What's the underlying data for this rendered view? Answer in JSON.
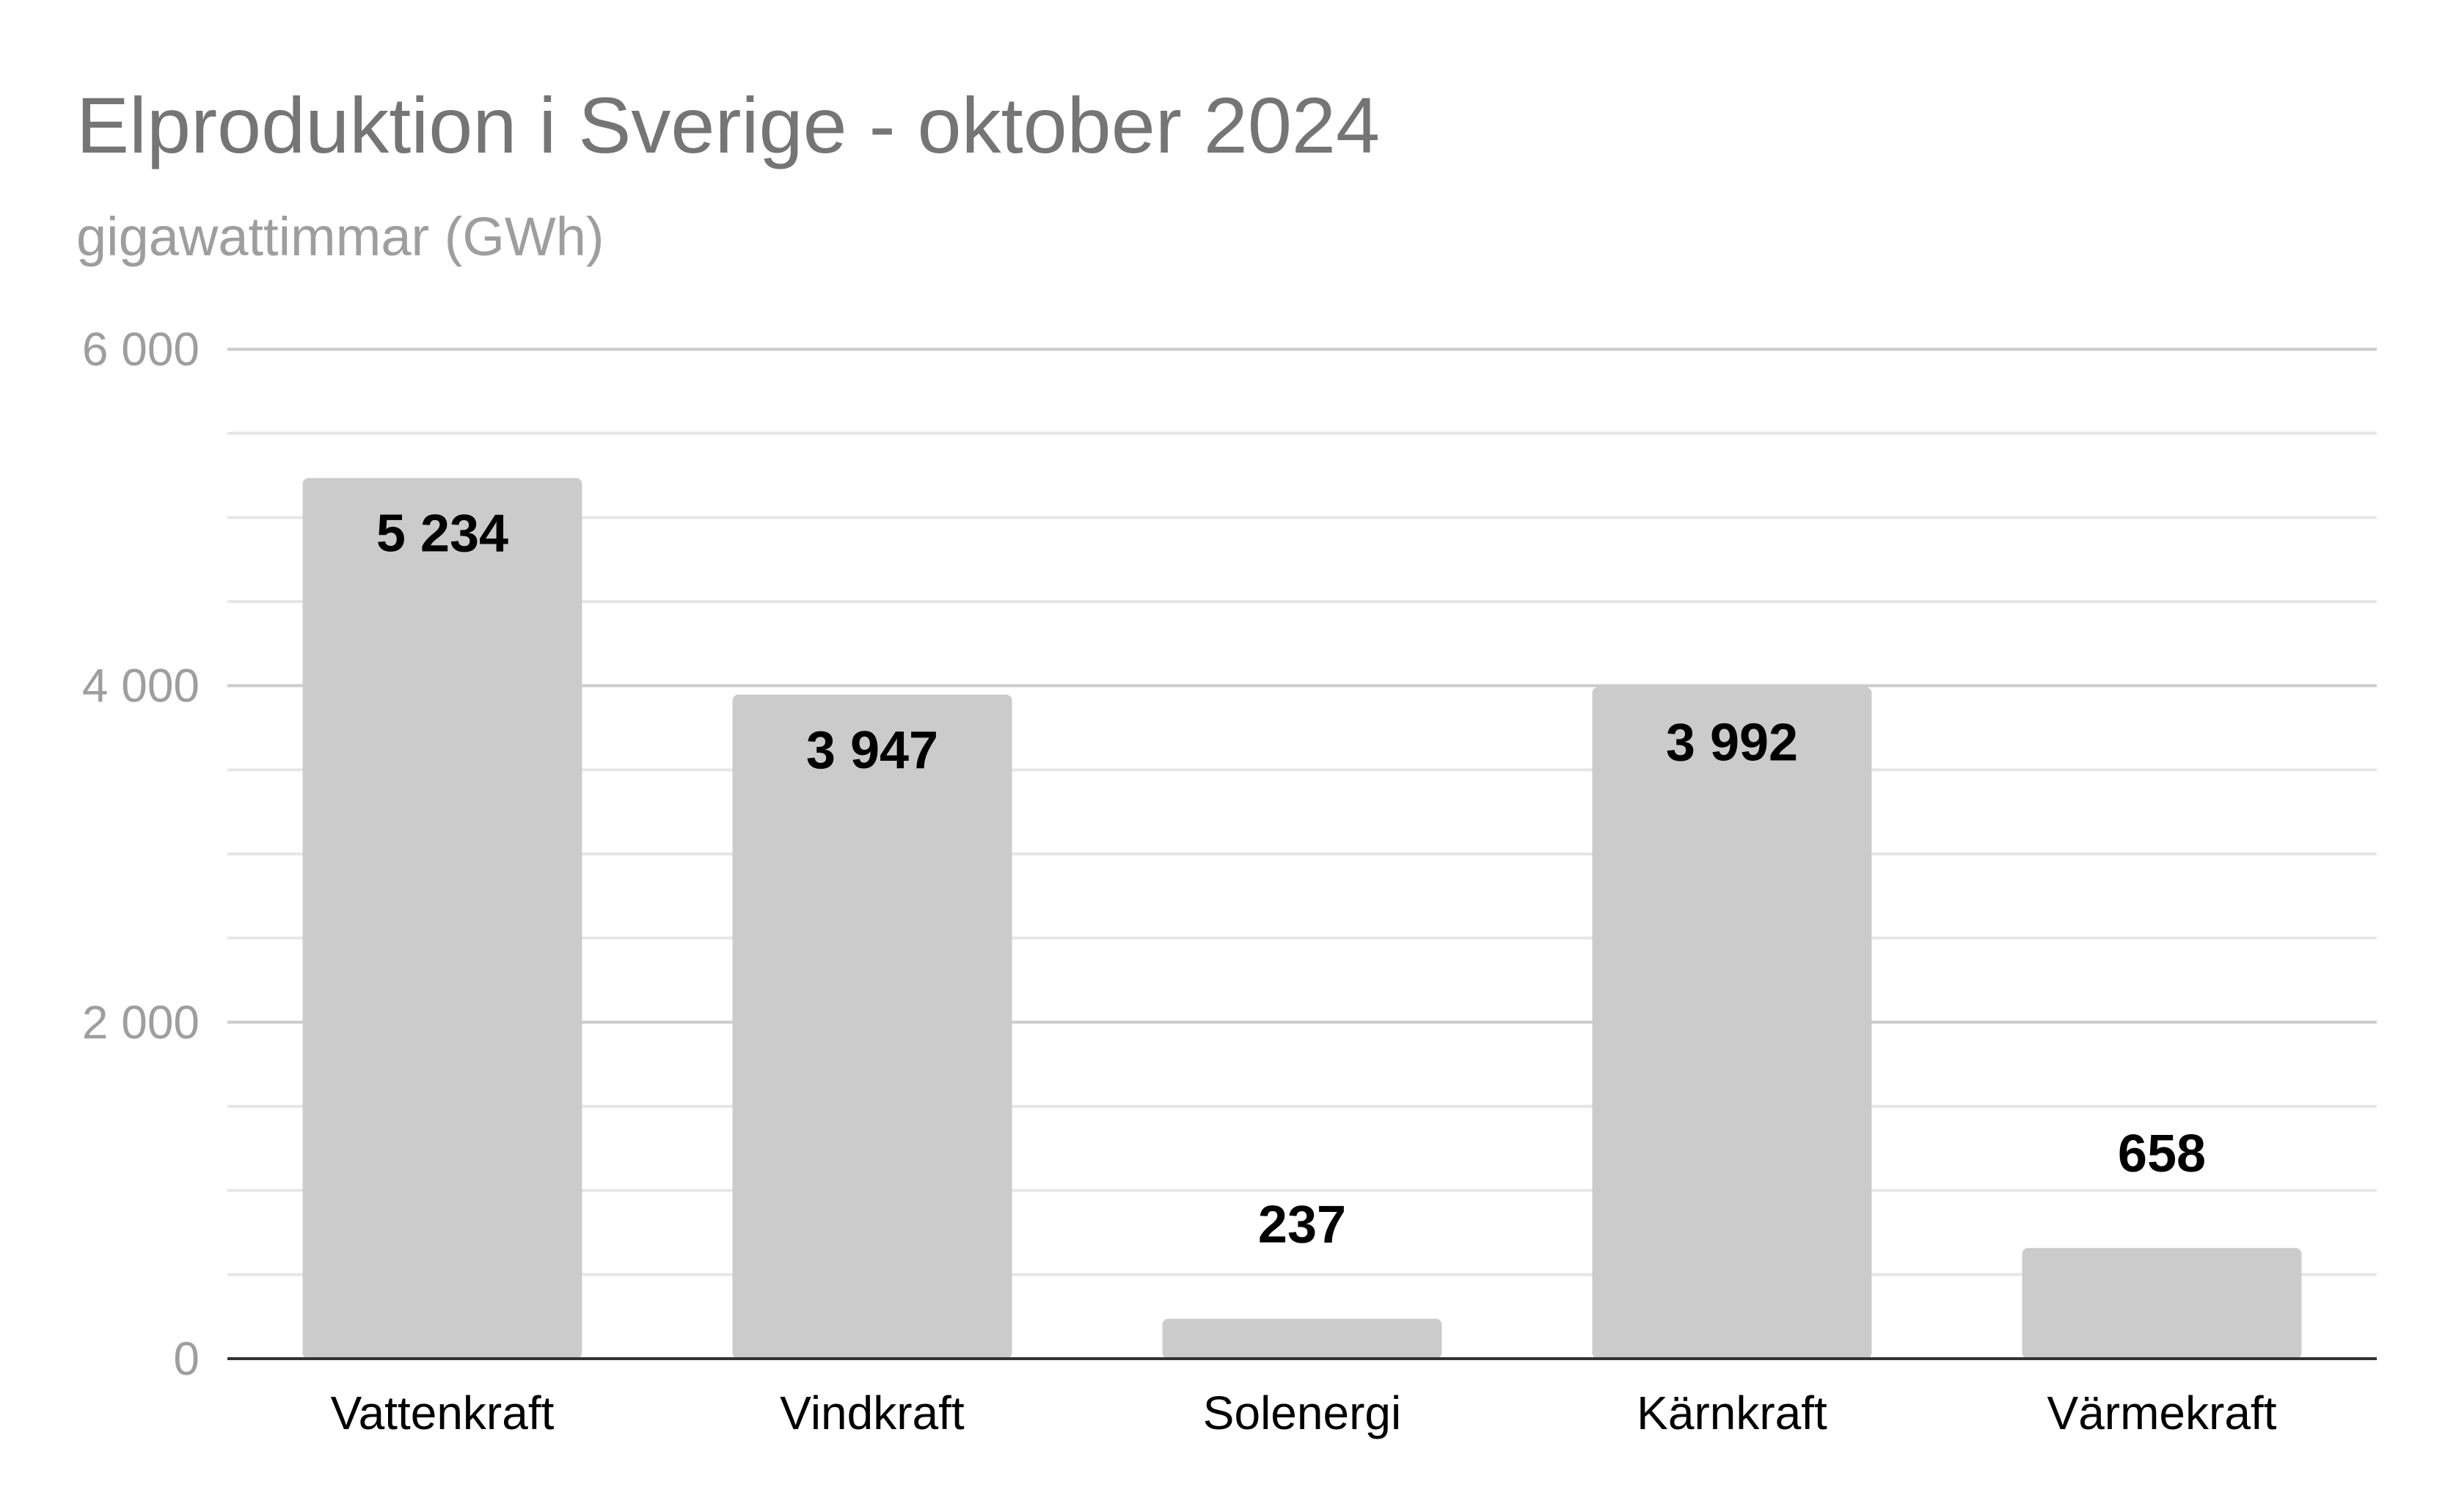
{
  "chart_data": {
    "type": "bar",
    "title": "Elproduktion i Sverige - oktober 2024",
    "subtitle": "gigawattimmar (GWh)",
    "xlabel": "",
    "ylabel": "",
    "categories": [
      "Vattenkraft",
      "Vindkraft",
      "Solenergi",
      "Kärnkraft",
      "Värmekraft"
    ],
    "values": [
      5234,
      3947,
      237,
      3992,
      658
    ],
    "value_labels": [
      "5 234",
      "3 947",
      "237",
      "3 992",
      "658"
    ],
    "ylim": [
      0,
      6000
    ],
    "yticks": [
      0,
      2000,
      4000,
      6000
    ],
    "ytick_labels": [
      "0",
      "2 000",
      "4 000",
      "6 000"
    ],
    "minor_step": 500,
    "grid": true,
    "legend": "none",
    "bar_color": "#cbcbcb"
  }
}
